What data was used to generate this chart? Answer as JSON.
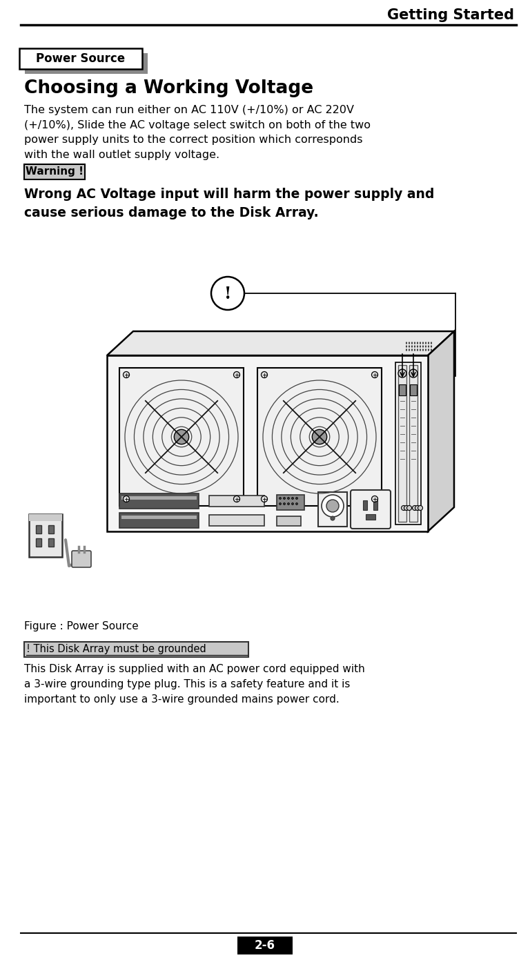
{
  "title_header": "Getting Started",
  "section_label": "Power Source",
  "heading": "Choosing a Working Voltage",
  "body_text": "The system can run either on AC 110V (+/10%) or AC 220V\n(+/10%), Slide the AC voltage select switch on both of the two\npower supply units to the correct position which corresponds\nwith the wall outlet supply voltage.",
  "warning_label": "Warning !",
  "warning_text": "Wrong AC Voltage input will harm the power supply and\ncause serious damage to the Disk Array.",
  "figure_caption": "Figure : Power Source",
  "grounded_label": "! This Disk Array must be grounded",
  "footer_text": "This Disk Array is supplied with an AC power cord equipped with\na 3-wire grounding type plug. This is a safety feature and it is\nimportant to only use a 3-wire grounded mains power cord.",
  "page_number": "2-6",
  "bg_color": "#ffffff",
  "text_color": "#000000",
  "header_line_color": "#000000",
  "warning_bg": "#c8c8c8",
  "grounded_bg": "#c8c8c8"
}
